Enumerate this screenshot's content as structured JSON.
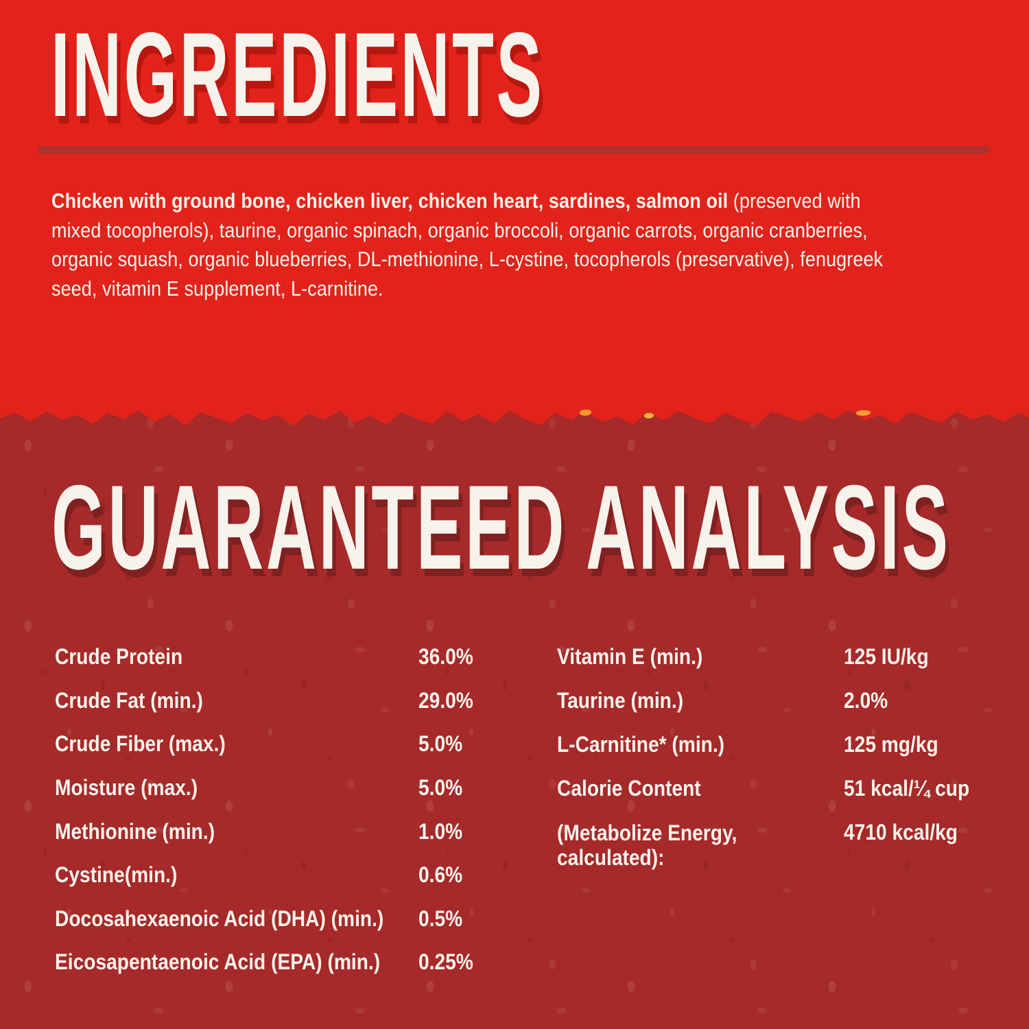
{
  "ingredients": {
    "title": "INGREDIENTS",
    "bold_intro": "Chicken with ground bone, chicken liver, chicken heart, sardines, salmon oil",
    "rest": " (preserved with mixed tocopherols), taurine, organic spinach, organic broccoli, organic carrots, organic cranberries, organic squash, organic blueberries, DL-methionine, L-cystine, tocopherols (preservative), fenugreek seed, vitamin E supplement, L-carnitine."
  },
  "analysis": {
    "title": "GUARANTEED ANALYSIS",
    "left_rows": [
      {
        "label": "Crude Protein",
        "value": "36.0%"
      },
      {
        "label": "Crude Fat (min.)",
        "value": "29.0%"
      },
      {
        "label": "Crude Fiber (max.)",
        "value": "5.0%"
      },
      {
        "label": "Moisture (max.)",
        "value": "5.0%"
      },
      {
        "label": "Methionine (min.)",
        "value": "1.0%"
      },
      {
        "label": "Cystine(min.)",
        "value": "0.6%"
      },
      {
        "label": "Docosahexaenoic Acid (DHA) (min.)",
        "value": "0.5%"
      },
      {
        "label": "Eicosapentaenoic Acid (EPA) (min.)",
        "value": "0.25%"
      }
    ],
    "right_rows": [
      {
        "label": "Vitamin E (min.)",
        "value": "125 IU/kg"
      },
      {
        "label": "Taurine (min.)",
        "value": "2.0%"
      },
      {
        "label": "L-Carnitine* (min.)",
        "value": "125 mg/kg"
      },
      {
        "label": "Calorie Content",
        "value": "51 kcal/¼ cup"
      },
      {
        "label": "(Metabolize Energy, calculated):",
        "value": "4710 kcal/kg"
      }
    ]
  },
  "colors": {
    "top_background": "#e1231b",
    "bottom_background": "#a52a29",
    "divider_rule": "#ab322d",
    "text": "#f8f2ec",
    "title_shadow_top": "#b6170f",
    "title_shadow_bottom": "#7e2120",
    "torn_edge_specks": [
      "#ef9a2f",
      "#f6b03c",
      "#f1a237"
    ]
  }
}
